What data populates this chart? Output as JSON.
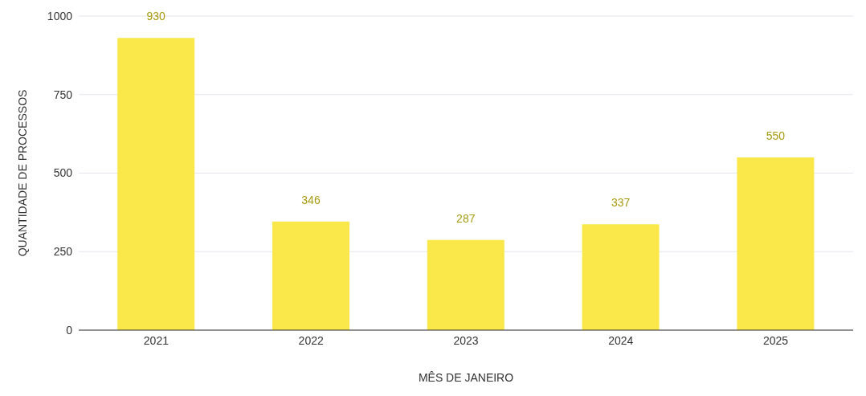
{
  "chart_data": {
    "type": "bar",
    "xlabel": "MÊS DE JANEIRO",
    "ylabel": "QUANTIDADE DE PROCESSOS",
    "categories": [
      "2021",
      "2022",
      "2023",
      "2024",
      "2025"
    ],
    "values": [
      930,
      346,
      287,
      337,
      550
    ],
    "color": "#fae84a",
    "ylim": [
      0,
      1000
    ],
    "yticks": [
      0,
      250,
      500,
      750,
      1000
    ],
    "grid": "y",
    "data_labels": true
  }
}
